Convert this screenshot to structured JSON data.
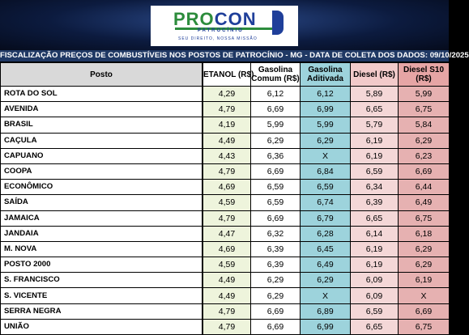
{
  "logo": {
    "word_pro": "PRO",
    "word_con": "CON",
    "sub": "PATROCÍNIO",
    "tag": "SEU DIREITO, NOSSA MISSÃO"
  },
  "title": "FISCALIZAÇÃO PREÇOS DE COMBUSTÍVEIS NOS POSTOS DE PATROCÍNIO - MG - DATA DE COLETA DOS DADOS: 09/10/2025",
  "headers": {
    "posto": "Posto",
    "etanol": "ETANOL (R$)",
    "gas_comum": "Gasolina Comum (R$)",
    "gas_aditivada": "Gasolina Aditivada",
    "diesel": "Diesel (R$)",
    "diesel_s10": "Diesel S10 (R$)"
  },
  "rows": [
    {
      "posto": "ROTA DO SOL",
      "etanol": "4,29",
      "gas_comum": "6,12",
      "gas_aditivada": "6,12",
      "diesel": "5,89",
      "diesel_s10": "5,99"
    },
    {
      "posto": "AVENIDA",
      "etanol": "4,79",
      "gas_comum": "6,69",
      "gas_aditivada": "6,99",
      "diesel": "6,65",
      "diesel_s10": "6,75"
    },
    {
      "posto": "BRASIL",
      "etanol": "4,19",
      "gas_comum": "5,99",
      "gas_aditivada": "5,99",
      "diesel": "5,79",
      "diesel_s10": "5,84"
    },
    {
      "posto": "CAÇULA",
      "etanol": "4,49",
      "gas_comum": "6,29",
      "gas_aditivada": "6,29",
      "diesel": "6,19",
      "diesel_s10": "6,29"
    },
    {
      "posto": "CAPUANO",
      "etanol": "4,43",
      "gas_comum": "6,36",
      "gas_aditivada": "X",
      "diesel": "6,19",
      "diesel_s10": "6,23"
    },
    {
      "posto": "COOPA",
      "etanol": "4,79",
      "gas_comum": "6,69",
      "gas_aditivada": "6,84",
      "diesel": "6,59",
      "diesel_s10": "6,69"
    },
    {
      "posto": "ECONÔMICO",
      "etanol": "4,69",
      "gas_comum": "6,59",
      "gas_aditivada": "6,59",
      "diesel": "6,34",
      "diesel_s10": "6,44"
    },
    {
      "posto": "SAÍDA",
      "etanol": "4,59",
      "gas_comum": "6,59",
      "gas_aditivada": "6,74",
      "diesel": "6,39",
      "diesel_s10": "6,49"
    },
    {
      "posto": "JAMAICA",
      "etanol": "4,79",
      "gas_comum": "6,69",
      "gas_aditivada": "6,79",
      "diesel": "6,65",
      "diesel_s10": "6,75"
    },
    {
      "posto": "JANDAIA",
      "etanol": "4,47",
      "gas_comum": "6,32",
      "gas_aditivada": "6,28",
      "diesel": "6,14",
      "diesel_s10": "6,18"
    },
    {
      "posto": "M. NOVA",
      "etanol": "4,69",
      "gas_comum": "6,39",
      "gas_aditivada": "6,45",
      "diesel": "6,19",
      "diesel_s10": "6,29"
    },
    {
      "posto": "POSTO 2000",
      "etanol": "4,59",
      "gas_comum": "6,39",
      "gas_aditivada": "6,49",
      "diesel": "6,19",
      "diesel_s10": "6,29"
    },
    {
      "posto": "S. FRANCISCO",
      "etanol": "4,49",
      "gas_comum": "6,29",
      "gas_aditivada": "6,29",
      "diesel": "6,09",
      "diesel_s10": "6,19"
    },
    {
      "posto": "S. VICENTE",
      "etanol": "4,49",
      "gas_comum": "6,29",
      "gas_aditivada": "X",
      "diesel": "6,09",
      "diesel_s10": "X"
    },
    {
      "posto": "SERRA NEGRA",
      "etanol": "4,79",
      "gas_comum": "6,69",
      "gas_aditivada": "6,89",
      "diesel": "6,59",
      "diesel_s10": "6,69"
    },
    {
      "posto": "UNIÃO",
      "etanol": "4,79",
      "gas_comum": "6,69",
      "gas_aditivada": "6,99",
      "diesel": "6,65",
      "diesel_s10": "6,75"
    }
  ]
}
